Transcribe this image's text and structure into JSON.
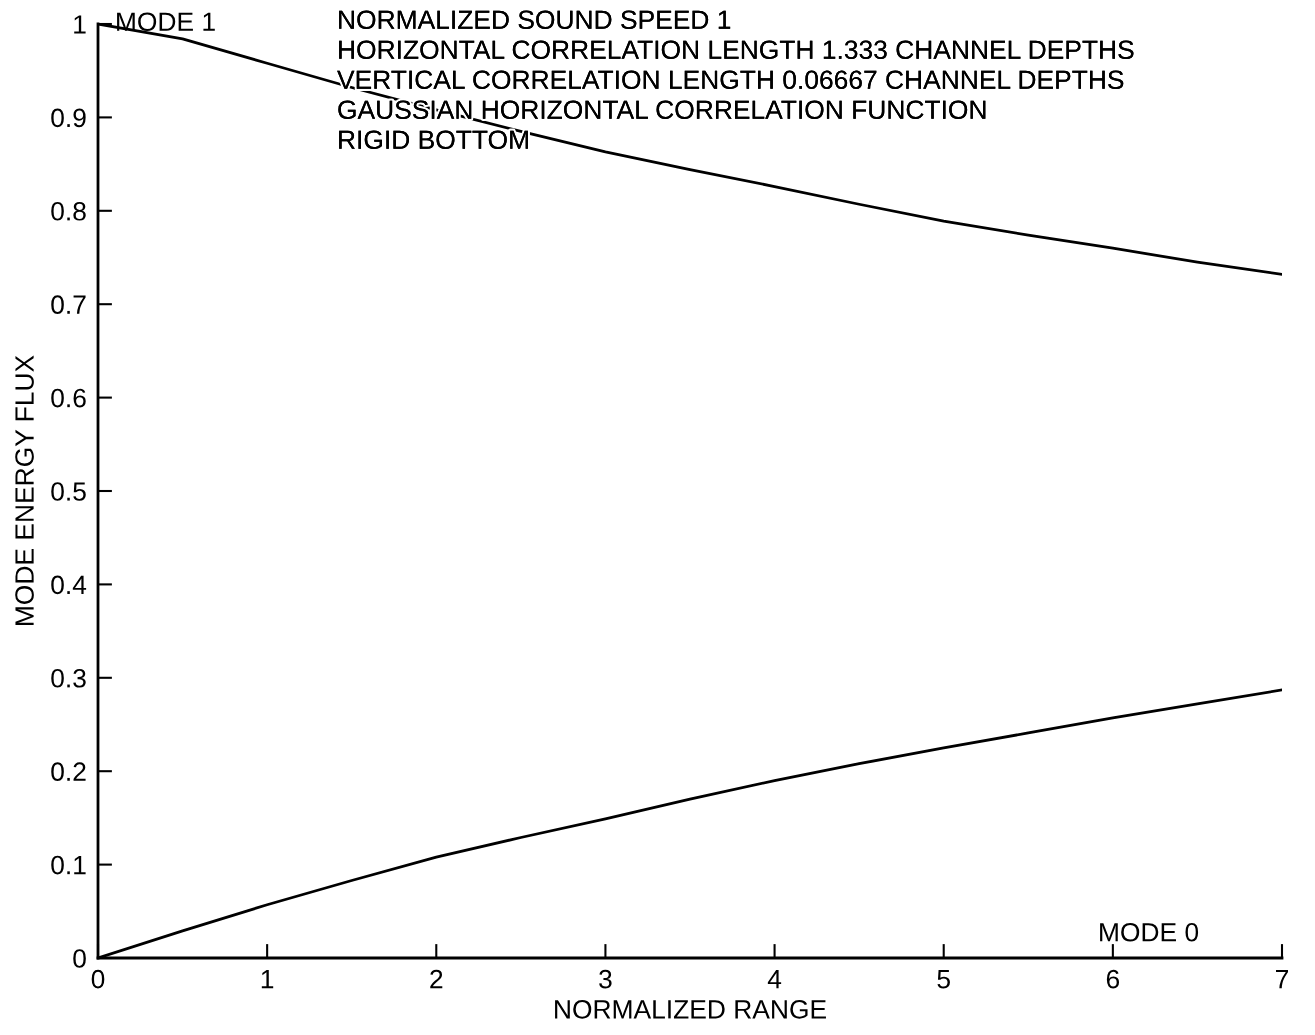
{
  "chart_data": {
    "type": "line",
    "xlabel": "NORMALIZED RANGE",
    "ylabel": "MODE ENERGY FLUX",
    "xlim": [
      0,
      7
    ],
    "ylim": [
      0,
      1
    ],
    "xticks": [
      0,
      1,
      2,
      3,
      4,
      5,
      6,
      7
    ],
    "yticks": [
      0,
      0.1,
      0.2,
      0.3,
      0.4,
      0.5,
      0.6,
      0.7,
      0.8,
      0.9,
      1
    ],
    "grid": false,
    "legend": false,
    "marker": "none",
    "line_style": "solid",
    "series": [
      {
        "color": "#000000",
        "x": [
          0,
          0.5,
          1,
          1.5,
          2,
          2.5,
          3,
          3.5,
          4,
          4.5,
          5,
          5.5,
          6,
          6.5,
          7
        ],
        "values": [
          1,
          0.984,
          0.958,
          0.932,
          0.908,
          0.885,
          0.863,
          0.844,
          0.826,
          0.807,
          0.789,
          0.774,
          0.76,
          0.745,
          0.732
        ]
      },
      {
        "color": "#000000",
        "x": [
          0,
          0.5,
          1,
          1.5,
          2,
          2.5,
          3,
          3.5,
          4,
          4.5,
          5,
          5.5,
          6,
          6.5,
          7
        ],
        "values": [
          0,
          0.029,
          0.057,
          0.083,
          0.108,
          0.129,
          0.149,
          0.17,
          0.19,
          0.208,
          0.225,
          0.241,
          0.257,
          0.272,
          0.287
        ]
      }
    ],
    "annotations": [
      {
        "text": "MODE 1",
        "x": 0.1,
        "y": 1
      },
      "NORMALIZED SOUND SPEED 1",
      "HORIZONTAL CORRELATION LENGTH 1.333 CHANNEL DEPTHS",
      "VERTICAL CORRELATION LENGTH 0.06667 CHANNEL DEPTHS",
      "GAUSSIAN HORIZONTAL CORRELATION FUNCTION",
      "RIGID BOTTOM",
      "MODE 0"
    ]
  }
}
